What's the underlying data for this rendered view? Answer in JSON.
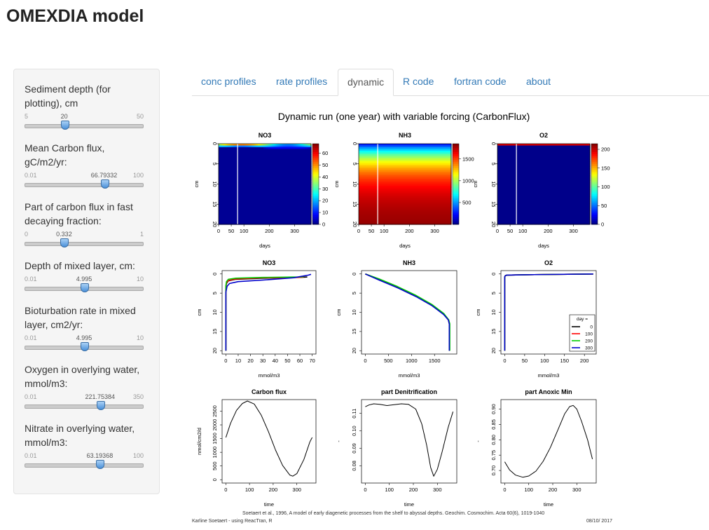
{
  "app": {
    "title": "OMEXDIA model"
  },
  "sliders": [
    {
      "label_lines": [
        "Sediment depth (for",
        "plotting), cm"
      ],
      "min": "5",
      "max": "50",
      "value": "20",
      "position": 0.333
    },
    {
      "label_lines": [
        "Mean Carbon flux,",
        "gC/m2/yr:"
      ],
      "min": "0.01",
      "max": "100",
      "value": "66.79332",
      "position": 0.668
    },
    {
      "label_lines": [
        "Part of carbon flux in fast",
        "decaying fraction:"
      ],
      "min": "0",
      "max": "1",
      "value": "0.332",
      "position": 0.332
    },
    {
      "label_lines": [
        "Depth of mixed layer, cm:"
      ],
      "min": "0.01",
      "max": "10",
      "value": "4.995",
      "position": 0.5
    },
    {
      "label_lines": [
        "Bioturbation rate in mixed",
        "layer, cm2/yr:"
      ],
      "min": "0.01",
      "max": "10",
      "value": "4.995",
      "position": 0.5
    },
    {
      "label_lines": [
        "Oxygen in overlying water,",
        "mmol/m3:"
      ],
      "min": "0.01",
      "max": "350",
      "value": "221.75384",
      "position": 0.634
    },
    {
      "label_lines": [
        "Nitrate in overlying water,",
        "mmol/m3:"
      ],
      "min": "0.01",
      "max": "100",
      "value": "63.19368",
      "position": 0.632
    }
  ],
  "tabs": [
    {
      "label": "conc profiles",
      "active": false
    },
    {
      "label": "rate profiles",
      "active": false
    },
    {
      "label": "dynamic",
      "active": true
    },
    {
      "label": "R code",
      "active": false
    },
    {
      "label": "fortran code",
      "active": false
    },
    {
      "label": "about",
      "active": false
    }
  ],
  "figure": {
    "title": "Dynamic run (one year) with variable forcing (CarbonFlux)",
    "reference": "Soetaert et al., 1996, A model of early diagenetic processes from the shelf to abyssal depths. Geochim. Cosmochim. Acta 60(6), 1019-1040",
    "author": "Karline Soetaert - using ReacTran, R",
    "date": "08/10/ 2017"
  },
  "chart_data": [
    {
      "type": "heatmap",
      "title": "NO3",
      "xlabel": "days",
      "ylabel": "cm",
      "xlim": [
        0,
        365
      ],
      "ylim": [
        20,
        0
      ],
      "x_ticks": [
        "0",
        "50",
        "100",
        "200",
        "300"
      ],
      "y_ticks": [
        "0",
        "5",
        "10",
        "15",
        "20"
      ],
      "colorbar_ticks": [
        "0",
        "10",
        "20",
        "30",
        "40",
        "50",
        "60"
      ],
      "colorbar_range": [
        0,
        68
      ],
      "marker_day": 75
    },
    {
      "type": "heatmap",
      "title": "NH3",
      "xlabel": "days",
      "ylabel": "cm",
      "xlim": [
        0,
        365
      ],
      "ylim": [
        20,
        0
      ],
      "x_ticks": [
        "0",
        "50",
        "100",
        "200",
        "300"
      ],
      "y_ticks": [
        "0",
        "5",
        "10",
        "15",
        "20"
      ],
      "colorbar_ticks": [
        "500",
        "1000",
        "1500"
      ],
      "colorbar_range": [
        0,
        1850
      ],
      "marker_day": 75
    },
    {
      "type": "heatmap",
      "title": "O2",
      "xlabel": "days",
      "ylabel": "cm",
      "xlim": [
        0,
        365
      ],
      "ylim": [
        20,
        0
      ],
      "x_ticks": [
        "0",
        "50",
        "100",
        "200",
        "300"
      ],
      "y_ticks": [
        "0",
        "5",
        "10",
        "15",
        "20"
      ],
      "colorbar_ticks": [
        "0",
        "50",
        "100",
        "150",
        "200"
      ],
      "colorbar_range": [
        0,
        215
      ],
      "marker_day": 75
    },
    {
      "type": "line",
      "title": "NO3",
      "xlabel": "mmol/m3",
      "ylabel": "cm",
      "xlim": [
        0,
        70
      ],
      "ylim": [
        20,
        0
      ],
      "x_ticks": [
        "0",
        "10",
        "20",
        "30",
        "40",
        "50",
        "60",
        "70"
      ],
      "y_ticks": [
        "0",
        "5",
        "10",
        "15",
        "20"
      ],
      "series": [
        {
          "name": "0",
          "color": "#000000",
          "points": [
            [
              0,
              20
            ],
            [
              0,
              3.5
            ],
            [
              0.5,
              2.5
            ],
            [
              2,
              1.8
            ],
            [
              8,
              1.4
            ],
            [
              30,
              1.1
            ],
            [
              60,
              0.9
            ],
            [
              66,
              0.8
            ]
          ]
        },
        {
          "name": "100",
          "color": "#ff0000",
          "points": [
            [
              0,
              20
            ],
            [
              0,
              3.5
            ],
            [
              0.5,
              2.3
            ],
            [
              2,
              1.7
            ],
            [
              8,
              1.3
            ],
            [
              30,
              1.0
            ],
            [
              60,
              0.9
            ],
            [
              63,
              0.8
            ]
          ]
        },
        {
          "name": "200",
          "color": "#00cc00",
          "points": [
            [
              0,
              20
            ],
            [
              0,
              3.0
            ],
            [
              0.5,
              2.0
            ],
            [
              2,
              1.4
            ],
            [
              8,
              1.1
            ],
            [
              30,
              0.9
            ],
            [
              60,
              0.8
            ],
            [
              63,
              0.7
            ]
          ]
        },
        {
          "name": "300",
          "color": "#0000cc",
          "points": [
            [
              0,
              20
            ],
            [
              0,
              4.8
            ],
            [
              1,
              3.2
            ],
            [
              3,
              2.5
            ],
            [
              10,
              2.0
            ],
            [
              30,
              1.6
            ],
            [
              55,
              1.0
            ],
            [
              67,
              0.3
            ],
            [
              69,
              0.1
            ]
          ]
        }
      ]
    },
    {
      "type": "line",
      "title": "NH3",
      "xlabel": "mmol/m3",
      "ylabel": "cm",
      "xlim": [
        0,
        1900
      ],
      "ylim": [
        20,
        0
      ],
      "x_ticks": [
        "0",
        "500",
        "1000",
        "1500"
      ],
      "y_ticks": [
        "0",
        "5",
        "10",
        "15",
        "20"
      ],
      "series": [
        {
          "name": "0",
          "color": "#000000",
          "points": [
            [
              0,
              0
            ],
            [
              300,
              1.5
            ],
            [
              700,
              3.5
            ],
            [
              1100,
              5.8
            ],
            [
              1450,
              8.2
            ],
            [
              1700,
              10.5
            ],
            [
              1800,
              12
            ],
            [
              1820,
              13
            ],
            [
              1820,
              20
            ]
          ]
        },
        {
          "name": "100",
          "color": "#ff0000",
          "points": [
            [
              0,
              0
            ],
            [
              300,
              1.4
            ],
            [
              700,
              3.4
            ],
            [
              1100,
              5.7
            ],
            [
              1450,
              8.1
            ],
            [
              1700,
              10.4
            ],
            [
              1800,
              12
            ],
            [
              1825,
              13
            ],
            [
              1825,
              20
            ]
          ]
        },
        {
          "name": "200",
          "color": "#00cc00",
          "points": [
            [
              0,
              0
            ],
            [
              300,
              1.3
            ],
            [
              700,
              3.3
            ],
            [
              1100,
              5.6
            ],
            [
              1450,
              8.0
            ],
            [
              1700,
              10.3
            ],
            [
              1810,
              12
            ],
            [
              1830,
              13
            ],
            [
              1830,
              20
            ]
          ]
        },
        {
          "name": "300",
          "color": "#0000cc",
          "points": [
            [
              0,
              0
            ],
            [
              300,
              1.6
            ],
            [
              700,
              3.6
            ],
            [
              1100,
              5.9
            ],
            [
              1450,
              8.3
            ],
            [
              1700,
              10.6
            ],
            [
              1800,
              12
            ],
            [
              1820,
              13
            ],
            [
              1820,
              20
            ]
          ]
        }
      ]
    },
    {
      "type": "line",
      "title": "O2",
      "xlabel": "mmol/m3",
      "ylabel": "cm",
      "xlim": [
        0,
        220
      ],
      "ylim": [
        20,
        0
      ],
      "x_ticks": [
        "0",
        "50",
        "100",
        "150",
        "200"
      ],
      "y_ticks": [
        "0",
        "5",
        "10",
        "15",
        "20"
      ],
      "legend": {
        "title": "day =",
        "position": "bottom-right",
        "entries": [
          "0",
          "100",
          "200",
          "300"
        ]
      },
      "series": [
        {
          "name": "0",
          "color": "#000000",
          "points": [
            [
              0,
              20
            ],
            [
              0,
              0.8
            ],
            [
              1,
              0.5
            ],
            [
              5,
              0.3
            ],
            [
              50,
              0.2
            ],
            [
              222,
              0
            ]
          ]
        },
        {
          "name": "100",
          "color": "#ff0000",
          "points": [
            [
              0,
              20
            ],
            [
              0,
              0.8
            ],
            [
              1,
              0.5
            ],
            [
              5,
              0.3
            ],
            [
              50,
              0.2
            ],
            [
              222,
              0
            ]
          ]
        },
        {
          "name": "200",
          "color": "#00cc00",
          "points": [
            [
              0,
              20
            ],
            [
              0,
              0.8
            ],
            [
              1,
              0.5
            ],
            [
              5,
              0.3
            ],
            [
              50,
              0.2
            ],
            [
              222,
              0
            ]
          ]
        },
        {
          "name": "300",
          "color": "#0000cc",
          "points": [
            [
              0,
              20
            ],
            [
              0,
              0.8
            ],
            [
              1,
              0.5
            ],
            [
              5,
              0.3
            ],
            [
              50,
              0.2
            ],
            [
              222,
              0
            ]
          ]
        }
      ]
    },
    {
      "type": "line",
      "title": "Carbon flux",
      "xlabel": "time",
      "ylabel": "nmol/cm2/d",
      "xlim": [
        0,
        365
      ],
      "ylim": [
        0,
        2800
      ],
      "x_ticks": [
        "0",
        "100",
        "200",
        "300"
      ],
      "y_ticks": [
        "0",
        "500",
        "1000",
        "1500",
        "2000",
        "2500"
      ],
      "series": [
        {
          "color": "#000000",
          "points": [
            [
              0,
              1540
            ],
            [
              20,
              2060
            ],
            [
              45,
              2530
            ],
            [
              70,
              2780
            ],
            [
              91,
              2870
            ],
            [
              120,
              2760
            ],
            [
              150,
              2350
            ],
            [
              180,
              1750
            ],
            [
              210,
              1080
            ],
            [
              240,
              520
            ],
            [
              270,
              170
            ],
            [
              283,
              130
            ],
            [
              300,
              220
            ],
            [
              330,
              740
            ],
            [
              355,
              1380
            ],
            [
              365,
              1540
            ]
          ]
        }
      ]
    },
    {
      "type": "line",
      "title": "part Denitrification",
      "xlabel": "time",
      "ylabel": "-",
      "xlim": [
        0,
        365
      ],
      "ylim": [
        0.072,
        0.116
      ],
      "x_ticks": [
        "0",
        "100",
        "200",
        "300"
      ],
      "y_ticks": [
        "0.08",
        "0.09",
        "0.10",
        "0.11"
      ],
      "series": [
        {
          "color": "#000000",
          "points": [
            [
              0,
              0.1138
            ],
            [
              15,
              0.1148
            ],
            [
              35,
              0.1155
            ],
            [
              60,
              0.1152
            ],
            [
              90,
              0.1145
            ],
            [
              120,
              0.115
            ],
            [
              150,
              0.1155
            ],
            [
              180,
              0.1152
            ],
            [
              210,
              0.1125
            ],
            [
              235,
              0.104
            ],
            [
              255,
              0.092
            ],
            [
              272,
              0.079
            ],
            [
              285,
              0.074
            ],
            [
              300,
              0.078
            ],
            [
              320,
              0.088
            ],
            [
              345,
              0.102
            ],
            [
              365,
              0.111
            ]
          ]
        }
      ]
    },
    {
      "type": "line",
      "title": "part Anoxic Min",
      "xlabel": "time",
      "ylabel": "-",
      "xlim": [
        0,
        365
      ],
      "ylim": [
        0.67,
        0.92
      ],
      "x_ticks": [
        "0",
        "100",
        "200",
        "300"
      ],
      "y_ticks": [
        "0.70",
        "0.75",
        "0.80",
        "0.85",
        "0.90"
      ],
      "series": [
        {
          "color": "#000000",
          "points": [
            [
              0,
              0.728
            ],
            [
              20,
              0.702
            ],
            [
              45,
              0.685
            ],
            [
              75,
              0.678
            ],
            [
              100,
              0.682
            ],
            [
              130,
              0.698
            ],
            [
              160,
              0.73
            ],
            [
              190,
              0.775
            ],
            [
              220,
              0.83
            ],
            [
              250,
              0.885
            ],
            [
              270,
              0.908
            ],
            [
              285,
              0.912
            ],
            [
              300,
              0.9
            ],
            [
              320,
              0.86
            ],
            [
              345,
              0.8
            ],
            [
              365,
              0.737
            ]
          ]
        }
      ]
    }
  ]
}
